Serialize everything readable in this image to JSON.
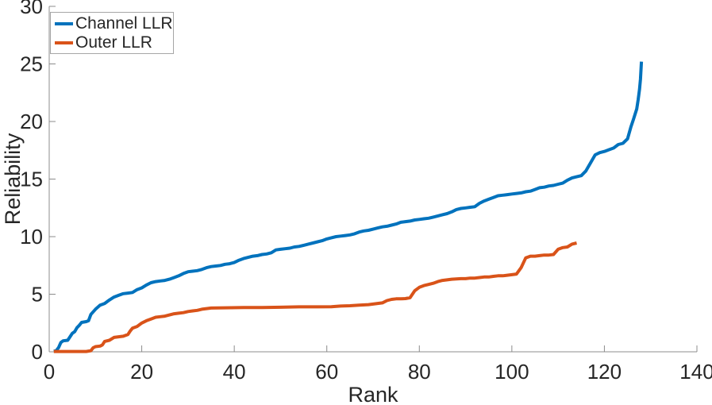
{
  "figure": {
    "background": "#ffffff",
    "text_color": "#262626",
    "axis_color": "#8c8c8c"
  },
  "legend": {
    "border_color": "#a6a6a6",
    "position": "top-left"
  },
  "chart_data": {
    "type": "line",
    "title": "",
    "xlabel": "Rank",
    "ylabel": "Reliability",
    "xlim": [
      0,
      140
    ],
    "ylim": [
      0,
      30
    ],
    "x_ticks": [
      0,
      20,
      40,
      60,
      80,
      100,
      120,
      140
    ],
    "y_ticks": [
      0,
      5,
      10,
      15,
      20,
      25,
      30
    ],
    "grid": false,
    "legend_position": "top-left",
    "series": [
      {
        "name": "Channel LLR",
        "color": "#0072BD",
        "points": [
          [
            1,
            0.05
          ],
          [
            1.5,
            0.1
          ],
          [
            2,
            0.35
          ],
          [
            2.5,
            0.8
          ],
          [
            3,
            0.95
          ],
          [
            4,
            1.0
          ],
          [
            4.5,
            1.3
          ],
          [
            5,
            1.6
          ],
          [
            5.5,
            1.75
          ],
          [
            6,
            2.1
          ],
          [
            6.5,
            2.3
          ],
          [
            7,
            2.55
          ],
          [
            8,
            2.62
          ],
          [
            8.5,
            2.7
          ],
          [
            9,
            3.25
          ],
          [
            10,
            3.7
          ],
          [
            11,
            4.05
          ],
          [
            12,
            4.2
          ],
          [
            13,
            4.5
          ],
          [
            14,
            4.75
          ],
          [
            15,
            4.9
          ],
          [
            16,
            5.05
          ],
          [
            17,
            5.1
          ],
          [
            18,
            5.15
          ],
          [
            19,
            5.4
          ],
          [
            20,
            5.55
          ],
          [
            21,
            5.8
          ],
          [
            22,
            6.0
          ],
          [
            23,
            6.1
          ],
          [
            24,
            6.15
          ],
          [
            25,
            6.2
          ],
          [
            26,
            6.3
          ],
          [
            27,
            6.45
          ],
          [
            28,
            6.6
          ],
          [
            29,
            6.8
          ],
          [
            30,
            6.95
          ],
          [
            31,
            7.0
          ],
          [
            32,
            7.05
          ],
          [
            33,
            7.15
          ],
          [
            34,
            7.3
          ],
          [
            35,
            7.4
          ],
          [
            36,
            7.45
          ],
          [
            37,
            7.5
          ],
          [
            38,
            7.6
          ],
          [
            39,
            7.65
          ],
          [
            40,
            7.75
          ],
          [
            41,
            7.95
          ],
          [
            42,
            8.1
          ],
          [
            43,
            8.2
          ],
          [
            44,
            8.3
          ],
          [
            45,
            8.35
          ],
          [
            46,
            8.45
          ],
          [
            47,
            8.5
          ],
          [
            48,
            8.6
          ],
          [
            49,
            8.85
          ],
          [
            50,
            8.9
          ],
          [
            51,
            8.95
          ],
          [
            52,
            9.0
          ],
          [
            53,
            9.1
          ],
          [
            54,
            9.15
          ],
          [
            55,
            9.25
          ],
          [
            56,
            9.35
          ],
          [
            57,
            9.45
          ],
          [
            58,
            9.55
          ],
          [
            59,
            9.65
          ],
          [
            60,
            9.8
          ],
          [
            61,
            9.9
          ],
          [
            62,
            10.0
          ],
          [
            63,
            10.05
          ],
          [
            64,
            10.1
          ],
          [
            65,
            10.15
          ],
          [
            66,
            10.25
          ],
          [
            67,
            10.4
          ],
          [
            68,
            10.5
          ],
          [
            69,
            10.55
          ],
          [
            70,
            10.65
          ],
          [
            71,
            10.75
          ],
          [
            72,
            10.85
          ],
          [
            73,
            10.9
          ],
          [
            74,
            11.0
          ],
          [
            75,
            11.1
          ],
          [
            76,
            11.25
          ],
          [
            77,
            11.3
          ],
          [
            78,
            11.35
          ],
          [
            79,
            11.45
          ],
          [
            80,
            11.5
          ],
          [
            81,
            11.55
          ],
          [
            82,
            11.6
          ],
          [
            83,
            11.7
          ],
          [
            84,
            11.8
          ],
          [
            85,
            11.9
          ],
          [
            86,
            12.0
          ],
          [
            87,
            12.15
          ],
          [
            88,
            12.35
          ],
          [
            89,
            12.45
          ],
          [
            90,
            12.5
          ],
          [
            91,
            12.55
          ],
          [
            92,
            12.6
          ],
          [
            93,
            12.9
          ],
          [
            94,
            13.1
          ],
          [
            95,
            13.25
          ],
          [
            96,
            13.4
          ],
          [
            97,
            13.55
          ],
          [
            98,
            13.6
          ],
          [
            99,
            13.65
          ],
          [
            100,
            13.7
          ],
          [
            101,
            13.75
          ],
          [
            102,
            13.8
          ],
          [
            103,
            13.9
          ],
          [
            104,
            13.95
          ],
          [
            105,
            14.1
          ],
          [
            106,
            14.25
          ],
          [
            107,
            14.3
          ],
          [
            108,
            14.4
          ],
          [
            109,
            14.45
          ],
          [
            110,
            14.55
          ],
          [
            111,
            14.65
          ],
          [
            112,
            14.9
          ],
          [
            113,
            15.1
          ],
          [
            114,
            15.2
          ],
          [
            115,
            15.3
          ],
          [
            116,
            15.7
          ],
          [
            117,
            16.4
          ],
          [
            118,
            17.1
          ],
          [
            119,
            17.3
          ],
          [
            120,
            17.4
          ],
          [
            121,
            17.55
          ],
          [
            122,
            17.7
          ],
          [
            123,
            18.0
          ],
          [
            124,
            18.1
          ],
          [
            125,
            18.5
          ],
          [
            125.7,
            19.5
          ],
          [
            126.3,
            20.2
          ],
          [
            127,
            21.1
          ],
          [
            127.3,
            21.9
          ],
          [
            127.6,
            22.8
          ],
          [
            127.8,
            23.7
          ],
          [
            128,
            25.2
          ]
        ]
      },
      {
        "name": "Outer LLR",
        "color": "#D95319",
        "points": [
          [
            1,
            0.03
          ],
          [
            8,
            0.03
          ],
          [
            9,
            0.1
          ],
          [
            9.5,
            0.35
          ],
          [
            10,
            0.45
          ],
          [
            11,
            0.5
          ],
          [
            11.5,
            0.6
          ],
          [
            12,
            0.9
          ],
          [
            13,
            1.0
          ],
          [
            14,
            1.25
          ],
          [
            15,
            1.3
          ],
          [
            16,
            1.35
          ],
          [
            17,
            1.5
          ],
          [
            17.5,
            1.8
          ],
          [
            18,
            2.05
          ],
          [
            19,
            2.2
          ],
          [
            20,
            2.5
          ],
          [
            21,
            2.7
          ],
          [
            22,
            2.85
          ],
          [
            23,
            3.0
          ],
          [
            24,
            3.05
          ],
          [
            25,
            3.1
          ],
          [
            26,
            3.2
          ],
          [
            27,
            3.3
          ],
          [
            28,
            3.35
          ],
          [
            29,
            3.4
          ],
          [
            30,
            3.5
          ],
          [
            31,
            3.55
          ],
          [
            32,
            3.6
          ],
          [
            33,
            3.7
          ],
          [
            34,
            3.75
          ],
          [
            35,
            3.8
          ],
          [
            38,
            3.82
          ],
          [
            42,
            3.85
          ],
          [
            46,
            3.85
          ],
          [
            50,
            3.87
          ],
          [
            54,
            3.9
          ],
          [
            58,
            3.9
          ],
          [
            61,
            3.92
          ],
          [
            63,
            3.97
          ],
          [
            65,
            4.0
          ],
          [
            67,
            4.05
          ],
          [
            69,
            4.1
          ],
          [
            71,
            4.2
          ],
          [
            72,
            4.25
          ],
          [
            73,
            4.45
          ],
          [
            74,
            4.55
          ],
          [
            75,
            4.6
          ],
          [
            76,
            4.6
          ],
          [
            77,
            4.62
          ],
          [
            78,
            4.7
          ],
          [
            79,
            5.3
          ],
          [
            80,
            5.6
          ],
          [
            81,
            5.75
          ],
          [
            82,
            5.85
          ],
          [
            83,
            5.95
          ],
          [
            84,
            6.1
          ],
          [
            85,
            6.2
          ],
          [
            86,
            6.25
          ],
          [
            87,
            6.3
          ],
          [
            88,
            6.33
          ],
          [
            89,
            6.35
          ],
          [
            90,
            6.35
          ],
          [
            91,
            6.4
          ],
          [
            92,
            6.4
          ],
          [
            93,
            6.45
          ],
          [
            94,
            6.5
          ],
          [
            95,
            6.5
          ],
          [
            96,
            6.55
          ],
          [
            97,
            6.6
          ],
          [
            98,
            6.6
          ],
          [
            99,
            6.65
          ],
          [
            100,
            6.7
          ],
          [
            101,
            6.75
          ],
          [
            102,
            7.3
          ],
          [
            103,
            8.15
          ],
          [
            104,
            8.3
          ],
          [
            105,
            8.3
          ],
          [
            106,
            8.35
          ],
          [
            107,
            8.4
          ],
          [
            108,
            8.4
          ],
          [
            109,
            8.45
          ],
          [
            110,
            8.9
          ],
          [
            111,
            9.05
          ],
          [
            112,
            9.1
          ],
          [
            113,
            9.35
          ],
          [
            114,
            9.45
          ]
        ]
      }
    ]
  }
}
